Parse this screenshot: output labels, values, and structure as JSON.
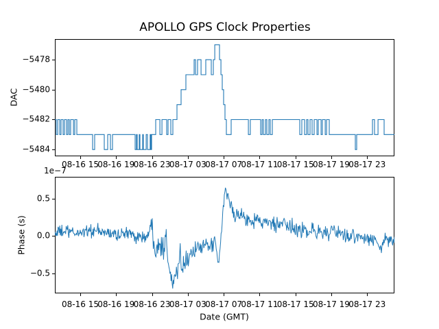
{
  "figure": {
    "title": "APOLLO GPS Clock Properties",
    "background": "#ffffff"
  },
  "colors": {
    "line": "#1f77b4",
    "axes": "#000000",
    "text": "#000000"
  },
  "labels": {
    "top_ylabel": "DAC",
    "bottom_ylabel": "Phase (s)",
    "xlabel": "Date (GMT)",
    "offset_text": "1e−7"
  },
  "chart_data": [
    {
      "type": "line",
      "subplot": "top",
      "title": "APOLLO GPS Clock Properties",
      "ylabel": "DAC",
      "line_style": "steps-post",
      "legend": "none",
      "grid": false,
      "x_unit": "hours from start of visible range (axis spans ~08-16 12:10 to 08-18 02:00 GMT)",
      "xlim": [
        0,
        37.87
      ],
      "ylim": [
        -5484.45,
        -5476.62
      ],
      "yticks": [
        -5478,
        -5480,
        -5482,
        -5484
      ],
      "ytick_labels": [
        "−5478",
        "−5480",
        "−5482",
        "−5484"
      ],
      "xticks_hours": [
        2.83,
        6.83,
        10.83,
        14.83,
        18.83,
        22.83,
        26.83,
        30.83,
        34.83
      ],
      "xtick_labels": [
        "08-16 15",
        "08-16 19",
        "08-16 23",
        "08-17 03",
        "08-17 07",
        "08-17 11",
        "08-17 15",
        "08-17 19",
        "08-17 23"
      ],
      "steps": [
        [
          0.0,
          -5482
        ],
        [
          0.15,
          -5483
        ],
        [
          0.31,
          -5482
        ],
        [
          0.54,
          -5483
        ],
        [
          0.69,
          -5482
        ],
        [
          0.92,
          -5483
        ],
        [
          1.07,
          -5482
        ],
        [
          1.3,
          -5483
        ],
        [
          1.45,
          -5482
        ],
        [
          1.61,
          -5483
        ],
        [
          1.76,
          -5482
        ],
        [
          2.07,
          -5483
        ],
        [
          2.22,
          -5482
        ],
        [
          2.45,
          -5483
        ],
        [
          4.21,
          -5484
        ],
        [
          4.44,
          -5483
        ],
        [
          5.51,
          -5484
        ],
        [
          5.89,
          -5483
        ],
        [
          6.2,
          -5484
        ],
        [
          6.43,
          -5483
        ],
        [
          8.95,
          -5484
        ],
        [
          9.1,
          -5483
        ],
        [
          9.18,
          -5484
        ],
        [
          9.41,
          -5483
        ],
        [
          9.49,
          -5484
        ],
        [
          9.79,
          -5483
        ],
        [
          9.87,
          -5484
        ],
        [
          10.18,
          -5483
        ],
        [
          10.33,
          -5484
        ],
        [
          10.63,
          -5483
        ],
        [
          10.71,
          -5484
        ],
        [
          10.79,
          -5483
        ],
        [
          11.25,
          -5482
        ],
        [
          11.71,
          -5483
        ],
        [
          11.94,
          -5482
        ],
        [
          12.47,
          -5483
        ],
        [
          12.62,
          -5482
        ],
        [
          12.93,
          -5483
        ],
        [
          13.16,
          -5482
        ],
        [
          13.62,
          -5481
        ],
        [
          14.08,
          -5480
        ],
        [
          14.61,
          -5479
        ],
        [
          15.53,
          -5478
        ],
        [
          15.68,
          -5479
        ],
        [
          15.91,
          -5478
        ],
        [
          16.3,
          -5479
        ],
        [
          16.83,
          -5478
        ],
        [
          17.44,
          -5479
        ],
        [
          17.67,
          -5478
        ],
        [
          17.83,
          -5477
        ],
        [
          18.36,
          -5478
        ],
        [
          18.52,
          -5479
        ],
        [
          18.67,
          -5480
        ],
        [
          18.82,
          -5481
        ],
        [
          18.97,
          -5482
        ],
        [
          19.13,
          -5483
        ],
        [
          19.66,
          -5482
        ],
        [
          21.58,
          -5483
        ],
        [
          21.8,
          -5482
        ],
        [
          22.95,
          -5483
        ],
        [
          23.11,
          -5482
        ],
        [
          23.26,
          -5483
        ],
        [
          23.49,
          -5482
        ],
        [
          23.64,
          -5483
        ],
        [
          23.87,
          -5482
        ],
        [
          24.02,
          -5483
        ],
        [
          24.25,
          -5482
        ],
        [
          27.31,
          -5483
        ],
        [
          27.54,
          -5482
        ],
        [
          27.85,
          -5483
        ],
        [
          28.08,
          -5482
        ],
        [
          28.23,
          -5483
        ],
        [
          28.46,
          -5482
        ],
        [
          28.69,
          -5483
        ],
        [
          28.92,
          -5482
        ],
        [
          29.23,
          -5483
        ],
        [
          29.38,
          -5482
        ],
        [
          29.69,
          -5483
        ],
        [
          29.84,
          -5482
        ],
        [
          30.15,
          -5483
        ],
        [
          30.3,
          -5482
        ],
        [
          30.6,
          -5483
        ],
        [
          33.51,
          -5484
        ],
        [
          33.66,
          -5483
        ],
        [
          35.42,
          -5482
        ],
        [
          35.65,
          -5483
        ],
        [
          36.04,
          -5482
        ],
        [
          36.72,
          -5483
        ],
        [
          37.87,
          -5483
        ]
      ]
    },
    {
      "type": "line",
      "subplot": "bottom",
      "ylabel": "Phase (s)",
      "xlabel": "Date (GMT)",
      "offset_text": "1e−7",
      "value_scale": "1e-7 seconds",
      "legend": "none",
      "grid": false,
      "x_unit": "hours from start of visible range (axis spans ~08-16 12:10 to 08-18 02:00 GMT)",
      "xlim": [
        0,
        37.87
      ],
      "ylim": [
        -0.77,
        0.79
      ],
      "yticks": [
        0.5,
        0.0,
        -0.5
      ],
      "ytick_labels": [
        "0.5",
        "0.0",
        "−0.5"
      ],
      "xticks_hours": [
        2.83,
        6.83,
        10.83,
        14.83,
        18.83,
        22.83,
        26.83,
        30.83,
        34.83
      ],
      "xtick_labels": [
        "08-16 15",
        "08-16 19",
        "08-16 23",
        "08-17 03",
        "08-17 07",
        "08-17 11",
        "08-17 15",
        "08-17 19",
        "08-17 23"
      ],
      "mean_path": [
        [
          0.0,
          0.04
        ],
        [
          1.15,
          0.06
        ],
        [
          2.3,
          0.03
        ],
        [
          3.44,
          0.07
        ],
        [
          4.59,
          0.06
        ],
        [
          5.74,
          0.04
        ],
        [
          6.89,
          0.02
        ],
        [
          8.03,
          0.03
        ],
        [
          9.18,
          0.0
        ],
        [
          9.95,
          -0.02
        ],
        [
          10.56,
          0.0
        ],
        [
          10.79,
          0.22
        ],
        [
          11.02,
          -0.05
        ],
        [
          11.32,
          -0.12
        ],
        [
          11.63,
          -0.05
        ],
        [
          11.94,
          -0.15
        ],
        [
          12.24,
          -0.08
        ],
        [
          12.39,
          0.04
        ],
        [
          12.55,
          -0.2
        ],
        [
          12.7,
          -0.35
        ],
        [
          12.85,
          -0.45
        ],
        [
          13.01,
          -0.55
        ],
        [
          13.16,
          -0.62
        ],
        [
          13.23,
          -0.68
        ],
        [
          13.39,
          -0.55
        ],
        [
          13.54,
          -0.5
        ],
        [
          13.69,
          -0.45
        ],
        [
          13.85,
          -0.42
        ],
        [
          14.0,
          0.02
        ],
        [
          14.08,
          -0.4
        ],
        [
          14.23,
          -0.38
        ],
        [
          14.54,
          -0.32
        ],
        [
          14.92,
          -0.28
        ],
        [
          15.3,
          -0.22
        ],
        [
          15.68,
          -0.18
        ],
        [
          16.07,
          -0.15
        ],
        [
          16.45,
          -0.17
        ],
        [
          16.83,
          -0.14
        ],
        [
          17.21,
          -0.12
        ],
        [
          17.6,
          -0.13
        ],
        [
          17.9,
          -0.1
        ],
        [
          18.13,
          -0.3
        ],
        [
          18.29,
          -0.38
        ],
        [
          18.44,
          -0.15
        ],
        [
          18.59,
          0.1
        ],
        [
          18.74,
          0.3
        ],
        [
          18.9,
          0.5
        ],
        [
          19.05,
          0.68
        ],
        [
          19.2,
          0.55
        ],
        [
          19.36,
          0.48
        ],
        [
          19.59,
          0.42
        ],
        [
          19.89,
          0.32
        ],
        [
          20.28,
          0.26
        ],
        [
          20.66,
          0.28
        ],
        [
          21.04,
          0.24
        ],
        [
          21.42,
          0.22
        ],
        [
          21.8,
          0.25
        ],
        [
          22.19,
          0.2
        ],
        [
          22.57,
          0.22
        ],
        [
          22.95,
          0.18
        ],
        [
          23.34,
          0.2
        ],
        [
          23.72,
          0.15
        ],
        [
          24.1,
          0.17
        ],
        [
          24.48,
          0.14
        ],
        [
          24.87,
          0.15
        ],
        [
          25.25,
          0.12
        ],
        [
          25.63,
          0.14
        ],
        [
          26.01,
          0.1
        ],
        [
          26.4,
          0.12
        ],
        [
          26.78,
          0.08
        ],
        [
          27.16,
          0.1
        ],
        [
          27.54,
          0.07
        ],
        [
          27.93,
          0.09
        ],
        [
          28.31,
          0.06
        ],
        [
          28.69,
          0.08
        ],
        [
          29.07,
          0.05
        ],
        [
          29.46,
          0.07
        ],
        [
          29.84,
          0.04
        ],
        [
          30.22,
          0.05
        ],
        [
          30.6,
          0.03
        ],
        [
          30.99,
          0.05
        ],
        [
          31.37,
          0.02
        ],
        [
          31.75,
          0.04
        ],
        [
          32.14,
          0.0
        ],
        [
          32.52,
          0.02
        ],
        [
          32.9,
          -0.01
        ],
        [
          33.28,
          0.01
        ],
        [
          33.67,
          -0.03
        ],
        [
          34.05,
          -0.02
        ],
        [
          34.43,
          -0.05
        ],
        [
          34.81,
          -0.03
        ],
        [
          35.2,
          -0.06
        ],
        [
          35.58,
          -0.04
        ],
        [
          35.81,
          -0.1
        ],
        [
          36.11,
          -0.08
        ],
        [
          36.34,
          -0.2
        ],
        [
          36.57,
          -0.12
        ],
        [
          36.88,
          -0.06
        ],
        [
          37.18,
          -0.09
        ],
        [
          37.49,
          -0.05
        ],
        [
          37.87,
          -0.07
        ]
      ],
      "noise": {
        "sample_step_hours": 0.06,
        "seed": 1234,
        "sigma_regions": [
          [
            0.0,
            9.2,
            0.045
          ],
          [
            9.2,
            10.6,
            0.05
          ],
          [
            10.6,
            12.4,
            0.095
          ],
          [
            12.4,
            13.6,
            0.06
          ],
          [
            13.6,
            16.1,
            0.06
          ],
          [
            16.1,
            18.0,
            0.045
          ],
          [
            18.0,
            19.3,
            0.035
          ],
          [
            19.3,
            21.5,
            0.05
          ],
          [
            21.5,
            26.8,
            0.055
          ],
          [
            26.8,
            33.5,
            0.05
          ],
          [
            33.5,
            37.87,
            0.045
          ]
        ]
      }
    }
  ]
}
